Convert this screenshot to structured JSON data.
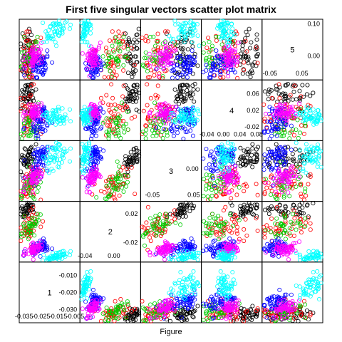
{
  "chart_data": {
    "type": "scatter",
    "title": "First five singular vectors scatter plot matrix",
    "xlabel": "Figure",
    "variables": [
      "1",
      "2",
      "3",
      "4",
      "5"
    ],
    "grid": false,
    "legend": "none",
    "point_style": "open-circle",
    "group_colors": {
      "black": "#000000",
      "red": "#ff0000",
      "green": "#00cc00",
      "blue": "#0000ff",
      "cyan": "#00ffff",
      "magenta": "#ff00ff"
    },
    "variable_ranges": {
      "1": [
        -0.037,
        -0.003
      ],
      "2": [
        -0.045,
        0.035
      ],
      "3": [
        -0.075,
        0.065
      ],
      "4": [
        -0.05,
        0.09
      ],
      "5": [
        -0.07,
        0.11
      ]
    },
    "variable_ticks": {
      "1": {
        "values": [
          -0.035,
          -0.03,
          -0.025,
          -0.02,
          -0.015,
          -0.01,
          -0.005
        ],
        "labels": [
          "-0.035",
          "-0.030",
          "-0.025",
          "-0.020",
          "-0.015",
          "-0.010",
          "-0.005"
        ]
      },
      "2": {
        "values": [
          -0.04,
          -0.02,
          0.0,
          0.02
        ],
        "labels": [
          "-0.04",
          "-0.02",
          "0.00",
          "0.02"
        ]
      },
      "3": {
        "values": [
          -0.05,
          0.0,
          0.05
        ],
        "labels": [
          "-0.05",
          "0.00",
          "0.05"
        ]
      },
      "4": {
        "values": [
          -0.04,
          -0.02,
          0.0,
          0.02,
          0.04,
          0.06,
          0.08
        ],
        "labels": [
          "-0.04",
          "-0.02",
          "0.00",
          "0.02",
          "0.04",
          "0.06",
          "0.08"
        ]
      },
      "5": {
        "values": [
          -0.05,
          0.0,
          0.05,
          0.1
        ],
        "labels": [
          "-0.05",
          "0.00",
          "0.05",
          "0.10"
        ]
      }
    },
    "groups": [
      {
        "color": "black",
        "count": 50,
        "means": [
          -0.0333,
          0.0275,
          0.025,
          0.055,
          0.0
        ],
        "sds": [
          0.0025,
          0.008,
          0.02,
          0.018,
          0.045
        ]
      },
      {
        "color": "red",
        "count": 50,
        "means": [
          -0.032,
          0.003,
          -0.03,
          0.005,
          -0.01
        ],
        "sds": [
          0.003,
          0.012,
          0.025,
          0.035,
          0.04
        ]
      },
      {
        "color": "green",
        "count": 40,
        "means": [
          -0.032,
          0.0,
          -0.045,
          -0.02,
          -0.01
        ],
        "sds": [
          0.003,
          0.01,
          0.02,
          0.025,
          0.03
        ]
      },
      {
        "color": "blue",
        "count": 60,
        "means": [
          -0.025,
          -0.027,
          0.02,
          -0.005,
          -0.03
        ],
        "sds": [
          0.003,
          0.005,
          0.02,
          0.02,
          0.02
        ]
      },
      {
        "color": "magenta",
        "count": 60,
        "means": [
          -0.029,
          -0.03,
          -0.02,
          0.015,
          -0.005
        ],
        "sds": [
          0.0025,
          0.005,
          0.015,
          0.01,
          0.02
        ]
      },
      {
        "color": "cyan",
        "count": 55,
        "means": [
          -0.016,
          -0.04,
          0.03,
          0.005,
          0.08
        ],
        "sds": [
          0.004,
          0.004,
          0.02,
          0.01,
          0.02
        ]
      }
    ]
  }
}
